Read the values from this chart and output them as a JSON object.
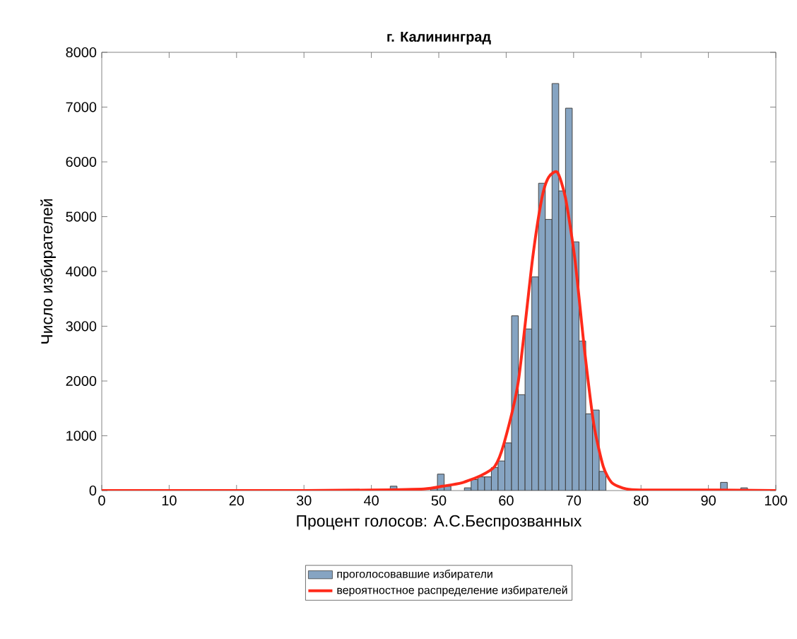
{
  "chart_data": {
    "type": "histogram",
    "title": "г. Калининград",
    "xlabel": "Процент голосов: А.С.Беспрозванных",
    "ylabel": "Число избирателей",
    "bins": [
      38.8,
      39.8,
      40.8,
      41.8,
      42.8,
      43.8,
      44.8,
      45.8,
      46.8,
      47.8,
      48.8,
      49.8,
      50.8,
      51.8,
      52.8,
      53.8,
      54.8,
      55.8,
      56.8,
      57.8,
      58.8,
      59.8,
      60.8,
      61.8,
      62.8,
      63.8,
      64.8,
      65.8,
      66.8,
      67.8,
      68.8,
      69.8,
      70.8,
      71.8,
      72.8,
      73.8,
      74.8,
      75.8,
      76.8,
      77.8,
      78.8,
      79.8,
      80.8,
      81.8,
      82.8,
      83.8,
      84.8,
      85.8,
      86.8,
      87.8,
      88.8,
      89.8,
      90.8,
      91.8,
      92.8,
      93.8,
      94.8,
      95.8
    ],
    "series": [
      {
        "name": "проголосовавшие избиратели",
        "color": "#86a4c2",
        "values": [
          0,
          20,
          0,
          0,
          80,
          0,
          0,
          0,
          0,
          null,
          50,
          300,
          80,
          0,
          0,
          50,
          200,
          250,
          250,
          420,
          540,
          870,
          3190,
          1750,
          2950,
          3900,
          5610,
          4950,
          7430,
          5470,
          6980,
          4540,
          2730,
          1400,
          1470,
          350,
          0,
          0,
          0,
          0,
          0,
          0,
          0,
          0,
          0,
          0,
          0,
          0,
          0,
          0,
          0,
          0,
          0,
          150,
          0,
          0,
          50
        ]
      },
      {
        "type": "line",
        "name": "вероятностное распределение избирателей",
        "color": "#ff2a1a",
        "line_style": "solid",
        "x": [
          0,
          30,
          40,
          47.8,
          50.6,
          53.4,
          56.2,
          58.3,
          59.7,
          61.8,
          63.9,
          65.3,
          66.3,
          67.6,
          68.8,
          70.2,
          71.6,
          73.0,
          74.4,
          75.7,
          77.8,
          80,
          90,
          100
        ],
        "values": [
          0,
          0,
          10,
          30,
          80,
          140,
          270,
          440,
          870,
          1990,
          4220,
          5340,
          5720,
          5810,
          5340,
          4220,
          2590,
          1210,
          440,
          140,
          30,
          10,
          10,
          0
        ]
      }
    ],
    "xlim": [
      0,
      100
    ],
    "xticks": [
      0,
      10,
      20,
      30,
      40,
      50,
      60,
      70,
      80,
      90,
      100
    ],
    "ylim": [
      0,
      8000
    ],
    "yticks": [
      0,
      1000,
      2000,
      3000,
      4000,
      5000,
      6000,
      7000,
      8000
    ],
    "grid": false,
    "legend": "bottom",
    "marker": "none"
  }
}
